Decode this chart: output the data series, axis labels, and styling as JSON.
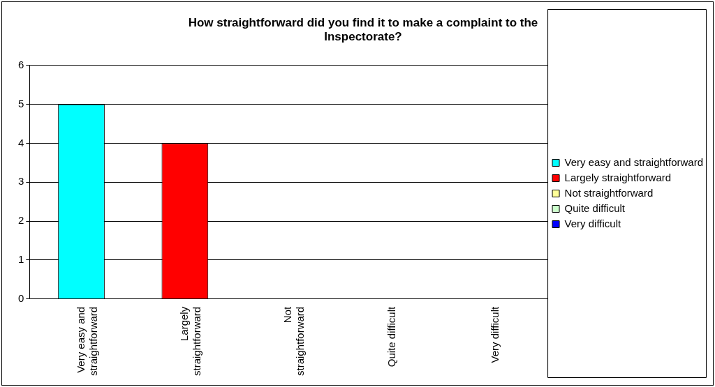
{
  "chart_data": {
    "type": "bar",
    "title": "How straightforward did you find it to make a complaint to the Inspectorate?",
    "categories": [
      "Very easy and straightforward",
      "Largely straightforward",
      "Not straightforward",
      "Quite difficult",
      "Very difficult"
    ],
    "series": [
      {
        "name": "Very easy and straightforward",
        "color": "#00ffff",
        "values": [
          5,
          null,
          null,
          null,
          null
        ]
      },
      {
        "name": "Largely straightforward",
        "color": "#ff0000",
        "values": [
          null,
          4,
          null,
          null,
          null
        ]
      },
      {
        "name": "Not straightforward",
        "color": "#ffff99",
        "values": [
          null,
          null,
          0,
          null,
          null
        ]
      },
      {
        "name": "Quite difficult",
        "color": "#ccffcc",
        "values": [
          null,
          null,
          null,
          0,
          null
        ]
      },
      {
        "name": "Very difficult",
        "color": "#0000ff",
        "values": [
          null,
          null,
          null,
          null,
          0
        ]
      }
    ],
    "stacked": true,
    "ylim": [
      0,
      6
    ],
    "yticks": [
      0,
      1,
      2,
      3,
      4,
      5,
      6
    ],
    "grid": "y",
    "legend": "right"
  }
}
